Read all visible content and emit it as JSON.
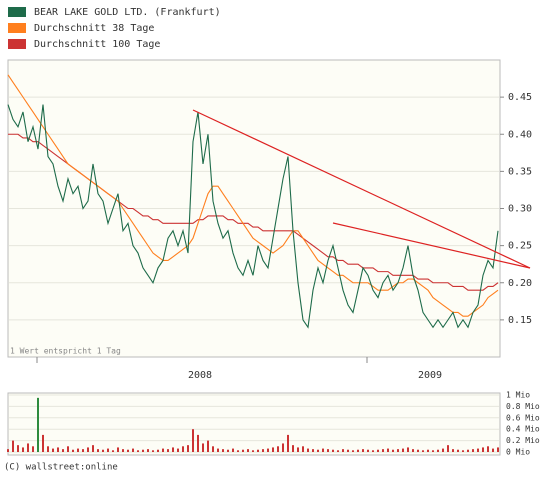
{
  "chart_data": {
    "type": "line",
    "note": "1 Wert entspricht 1 Tag",
    "copyright": "(C) wallstreet:online",
    "x_labels": [
      "2008",
      "2009"
    ],
    "ylim": [
      0.1,
      0.5
    ],
    "yticks": [
      0.15,
      {
        "value": 0.2,
        "label": "0.20"
      },
      0.25,
      {
        "value": 0.3,
        "label": "0.30"
      },
      0.35,
      {
        "value": 0.4,
        "label": "0.40"
      },
      0.45
    ],
    "grid": true,
    "legend": "top-left",
    "series": [
      {
        "name": "BEAR LAKE GOLD LTD. (Frankfurt)",
        "color": "#1e6b4a",
        "values": [
          0.44,
          0.42,
          0.41,
          0.43,
          0.39,
          0.41,
          0.38,
          0.44,
          0.37,
          0.36,
          0.33,
          0.31,
          0.34,
          0.32,
          0.33,
          0.3,
          0.31,
          0.36,
          0.32,
          0.31,
          0.28,
          0.3,
          0.32,
          0.27,
          0.28,
          0.25,
          0.24,
          0.22,
          0.21,
          0.2,
          0.22,
          0.23,
          0.26,
          0.27,
          0.25,
          0.27,
          0.24,
          0.39,
          0.43,
          0.36,
          0.4,
          0.31,
          0.28,
          0.26,
          0.27,
          0.24,
          0.22,
          0.21,
          0.23,
          0.21,
          0.25,
          0.23,
          0.22,
          0.26,
          0.3,
          0.34,
          0.37,
          0.27,
          0.2,
          0.15,
          0.14,
          0.19,
          0.22,
          0.2,
          0.23,
          0.25,
          0.22,
          0.19,
          0.17,
          0.16,
          0.19,
          0.22,
          0.21,
          0.19,
          0.18,
          0.2,
          0.21,
          0.19,
          0.2,
          0.22,
          0.25,
          0.21,
          0.19,
          0.16,
          0.15,
          0.14,
          0.15,
          0.14,
          0.15,
          0.16,
          0.14,
          0.15,
          0.14,
          0.16,
          0.17,
          0.21,
          0.23,
          0.22,
          0.27
        ]
      },
      {
        "name": "Durchschnitt 38 Tage",
        "color": "#ff7f1e",
        "values": [
          0.48,
          0.47,
          0.46,
          0.45,
          0.44,
          0.43,
          0.42,
          0.41,
          0.4,
          0.39,
          0.38,
          0.37,
          0.36,
          0.355,
          0.35,
          0.345,
          0.34,
          0.335,
          0.33,
          0.325,
          0.32,
          0.315,
          0.31,
          0.3,
          0.29,
          0.28,
          0.27,
          0.26,
          0.25,
          0.24,
          0.235,
          0.23,
          0.23,
          0.235,
          0.24,
          0.245,
          0.25,
          0.26,
          0.28,
          0.3,
          0.32,
          0.33,
          0.33,
          0.32,
          0.31,
          0.3,
          0.29,
          0.28,
          0.27,
          0.26,
          0.255,
          0.25,
          0.245,
          0.24,
          0.245,
          0.25,
          0.26,
          0.27,
          0.27,
          0.26,
          0.25,
          0.24,
          0.23,
          0.225,
          0.22,
          0.215,
          0.21,
          0.21,
          0.205,
          0.2,
          0.2,
          0.2,
          0.2,
          0.195,
          0.19,
          0.19,
          0.19,
          0.195,
          0.2,
          0.2,
          0.205,
          0.205,
          0.2,
          0.195,
          0.19,
          0.18,
          0.175,
          0.17,
          0.165,
          0.16,
          0.16,
          0.155,
          0.155,
          0.16,
          0.165,
          0.17,
          0.18,
          0.185,
          0.19
        ]
      },
      {
        "name": "Durchschnitt 100 Tage",
        "color": "#cc3333",
        "values": [
          0.4,
          0.4,
          0.4,
          0.395,
          0.395,
          0.39,
          0.39,
          0.385,
          0.38,
          0.375,
          0.37,
          0.365,
          0.36,
          0.355,
          0.35,
          0.345,
          0.34,
          0.335,
          0.33,
          0.325,
          0.32,
          0.315,
          0.31,
          0.305,
          0.3,
          0.3,
          0.295,
          0.29,
          0.29,
          0.285,
          0.285,
          0.28,
          0.28,
          0.28,
          0.28,
          0.28,
          0.28,
          0.28,
          0.285,
          0.285,
          0.29,
          0.29,
          0.29,
          0.29,
          0.285,
          0.285,
          0.28,
          0.28,
          0.28,
          0.275,
          0.275,
          0.27,
          0.27,
          0.27,
          0.27,
          0.27,
          0.27,
          0.27,
          0.265,
          0.26,
          0.255,
          0.25,
          0.245,
          0.24,
          0.235,
          0.235,
          0.23,
          0.23,
          0.225,
          0.225,
          0.225,
          0.22,
          0.22,
          0.22,
          0.215,
          0.215,
          0.215,
          0.21,
          0.21,
          0.21,
          0.21,
          0.21,
          0.205,
          0.205,
          0.205,
          0.2,
          0.2,
          0.2,
          0.2,
          0.195,
          0.195,
          0.195,
          0.19,
          0.19,
          0.19,
          0.19,
          0.195,
          0.195,
          0.2
        ]
      }
    ],
    "volume": {
      "color": "#cc3333",
      "ylim": [
        0,
        1
      ],
      "yticks": [
        {
          "value": 0,
          "label": "0 Mio"
        },
        {
          "value": 0.2,
          "label": "0.2 Mio"
        },
        {
          "value": 0.4,
          "label": "0.4 Mio"
        },
        {
          "value": 0.6,
          "label": "0.6 Mio"
        },
        {
          "value": 0.8,
          "label": "0.8 Mio"
        },
        {
          "value": 1,
          "label": "1 Mio"
        }
      ],
      "values": [
        0.05,
        0.2,
        0.12,
        0.08,
        0.15,
        0.1,
        0.95,
        0.3,
        0.1,
        0.06,
        0.08,
        0.05,
        0.1,
        0.04,
        0.06,
        0.05,
        0.08,
        0.12,
        0.05,
        0.04,
        0.06,
        0.03,
        0.08,
        0.05,
        0.04,
        0.06,
        0.03,
        0.04,
        0.05,
        0.03,
        0.04,
        0.06,
        0.05,
        0.08,
        0.06,
        0.1,
        0.12,
        0.4,
        0.3,
        0.15,
        0.2,
        0.1,
        0.06,
        0.05,
        0.04,
        0.06,
        0.03,
        0.04,
        0.05,
        0.03,
        0.04,
        0.05,
        0.06,
        0.08,
        0.1,
        0.15,
        0.3,
        0.12,
        0.08,
        0.1,
        0.06,
        0.05,
        0.04,
        0.06,
        0.05,
        0.04,
        0.03,
        0.05,
        0.04,
        0.03,
        0.04,
        0.05,
        0.04,
        0.03,
        0.04,
        0.05,
        0.06,
        0.04,
        0.05,
        0.06,
        0.08,
        0.05,
        0.04,
        0.03,
        0.04,
        0.03,
        0.04,
        0.06,
        0.12,
        0.05,
        0.04,
        0.03,
        0.04,
        0.05,
        0.06,
        0.08,
        0.1,
        0.06,
        0.08
      ]
    }
  }
}
